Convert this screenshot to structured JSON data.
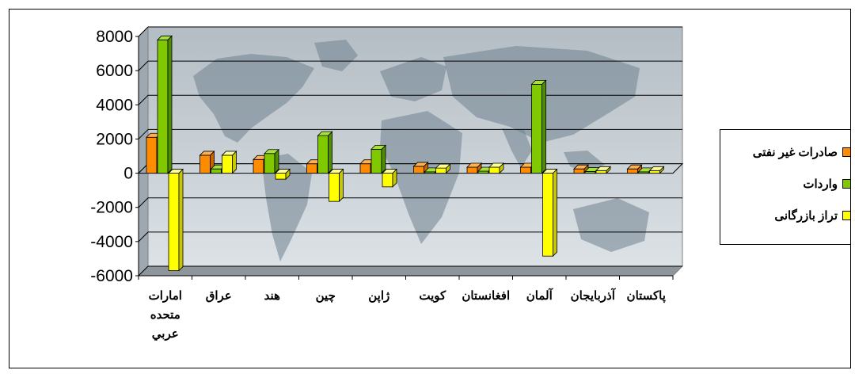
{
  "chart_data": {
    "type": "bar",
    "categories": [
      "امارات متحده عربي",
      "عراق",
      "هند",
      "چين",
      "ژاپن",
      "كويت",
      "افغانستان",
      "آلمان",
      "آذربايجان",
      "پاكستان"
    ],
    "category_lines": [
      [
        "امارات",
        "متحده",
        "عربي"
      ],
      [
        "عراق"
      ],
      [
        "هند"
      ],
      [
        "چين"
      ],
      [
        "ژاپن"
      ],
      [
        "كويت"
      ],
      [
        "افغانستان"
      ],
      [
        "آلمان"
      ],
      [
        "آذربايجان"
      ],
      [
        "پاكستان"
      ]
    ],
    "series": [
      {
        "name": "صادرات غير نفتی",
        "color": "#FF8C00",
        "side": "#C86400",
        "top": "#FFB055",
        "values": [
          2100,
          1050,
          800,
          550,
          550,
          400,
          350,
          350,
          250,
          250
        ]
      },
      {
        "name": "واردات",
        "color": "#80C800",
        "side": "#4E8E00",
        "top": "#A8E040",
        "values": [
          7800,
          250,
          1150,
          2200,
          1400,
          80,
          120,
          5200,
          100,
          80
        ]
      },
      {
        "name": "تراز بازرگانی",
        "color": "#FFFF00",
        "side": "#C8C800",
        "top": "#FFFF99",
        "values": [
          -5700,
          1050,
          -350,
          -1650,
          -800,
          300,
          350,
          -4850,
          150,
          150
        ]
      }
    ],
    "ylim": [
      -6000,
      8000
    ],
    "yticks": [
      8000,
      6000,
      4000,
      2000,
      0,
      -2000,
      -4000,
      -6000
    ],
    "ytick_labels": [
      "8000",
      "6000",
      "4000",
      "2000",
      "0",
      "-2000",
      "-4000",
      "-6000"
    ],
    "grid": true,
    "legend_position": "right",
    "title": "",
    "xlabel": "",
    "ylabel": ""
  }
}
